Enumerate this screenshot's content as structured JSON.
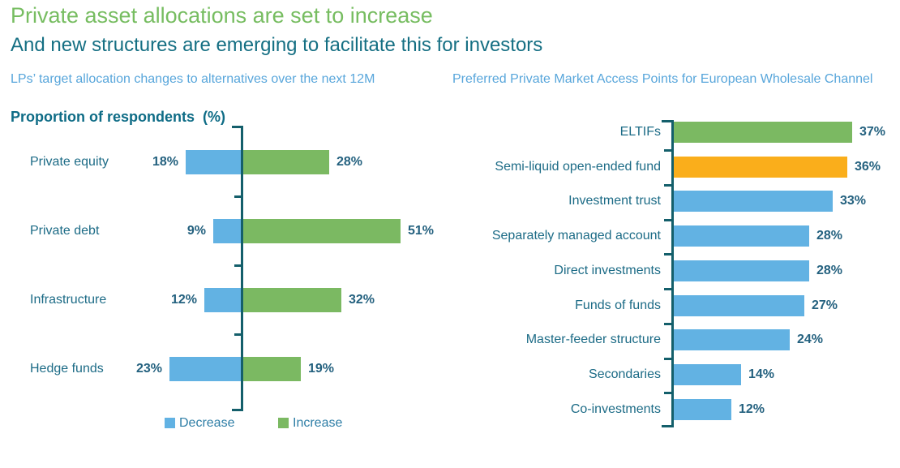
{
  "page": {
    "title": "Private asset allocations are set to increase",
    "subtitle": "And new structures are emerging to facilitate this for investors"
  },
  "colors": {
    "title_green": "#77BD61",
    "subtitle_teal": "#156F83",
    "caption_blue": "#58A6DB",
    "axis_teal": "#145F6B",
    "bar_blue": "#62B2E3",
    "bar_green": "#7BB962",
    "bar_orange": "#FAAE1B",
    "label_teal": "#1C6B86",
    "value_teal": "#24617F"
  },
  "chart_data": [
    {
      "type": "bar",
      "orientation": "horizontal_diverging",
      "title": "LPs’ target allocation changes to alternatives over the next 12M",
      "ylabel": "Proportion of respondents  (%)",
      "categories": [
        "Private equity",
        "Private debt",
        "Infrastructure",
        "Hedge funds"
      ],
      "series": [
        {
          "name": "Decrease",
          "side": "left",
          "color": "#62B2E3",
          "values": [
            18,
            9,
            12,
            23
          ]
        },
        {
          "name": "Increase",
          "side": "right",
          "color": "#7BB962",
          "values": [
            28,
            51,
            32,
            19
          ]
        }
      ],
      "value_suffix": "%",
      "legend_position": "bottom",
      "grid": false,
      "xlim": [
        -25,
        55
      ]
    },
    {
      "type": "bar",
      "orientation": "horizontal",
      "title": "Preferred Private Market Access Points for European Wholesale Channel",
      "categories": [
        "ELTIFs",
        "Semi-liquid open-ended fund",
        "Investment trust",
        "Separately managed account",
        "Direct investments",
        "Funds of funds",
        "Master-feeder structure",
        "Secondaries",
        "Co-investments"
      ],
      "values": [
        37,
        36,
        33,
        28,
        28,
        27,
        24,
        14,
        12
      ],
      "bar_colors": [
        "#7BB962",
        "#FAAE1B",
        "#62B2E3",
        "#62B2E3",
        "#62B2E3",
        "#62B2E3",
        "#62B2E3",
        "#62B2E3",
        "#62B2E3"
      ],
      "value_suffix": "%",
      "grid": false,
      "xlim": [
        0,
        40
      ]
    }
  ]
}
